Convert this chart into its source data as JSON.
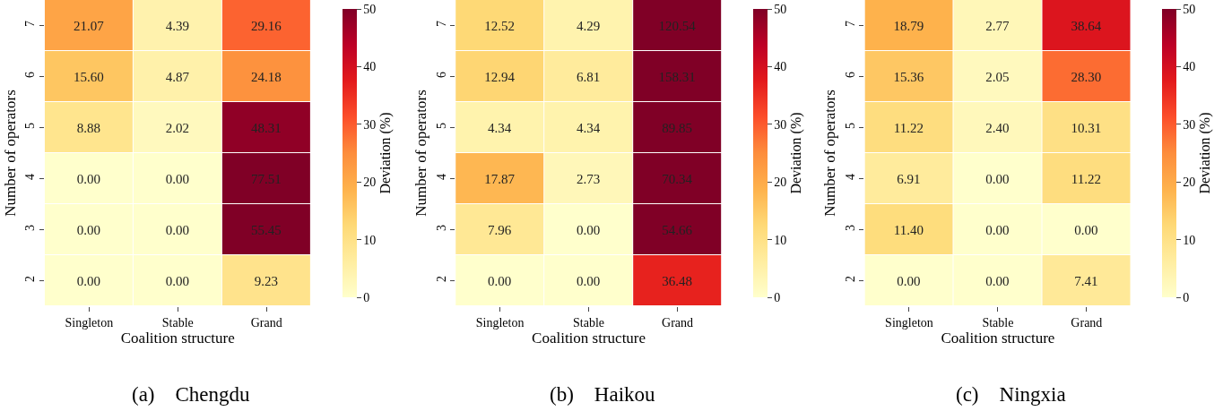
{
  "chart_data": [
    {
      "type": "heatmap",
      "title": "(a)    Chengdu",
      "xlabel": "Coalition structure",
      "ylabel": "Number of operators",
      "clabel": "Deviation (%)",
      "categories": [
        "Singleton",
        "Stable",
        "Grand"
      ],
      "y_categories": [
        "7",
        "6",
        "5",
        "4",
        "3",
        "2"
      ],
      "cells": [
        [
          21.07,
          4.39,
          29.16
        ],
        [
          15.6,
          4.87,
          24.18
        ],
        [
          8.88,
          2.02,
          48.31
        ],
        [
          0,
          0,
          77.51
        ],
        [
          0,
          0,
          55.45
        ],
        [
          0,
          0,
          9.23
        ]
      ],
      "cell_labels": [
        [
          "21.07",
          "4.39",
          "29.16"
        ],
        [
          "15.60",
          "4.87",
          "24.18"
        ],
        [
          "8.88",
          "2.02",
          "48.31"
        ],
        [
          "0.00",
          "0.00",
          "77.51"
        ],
        [
          "0.00",
          "0.00",
          "55.45"
        ],
        [
          "0.00",
          "0.00",
          "9.23"
        ]
      ],
      "clim": [
        0,
        50
      ],
      "cticks": [
        0,
        10,
        20,
        30,
        40,
        50
      ]
    },
    {
      "type": "heatmap",
      "title": "(b)    Haikou",
      "xlabel": "Coalition structure",
      "ylabel": "Number of operators",
      "clabel": "Deviation (%)",
      "categories": [
        "Singleton",
        "Stable",
        "Grand"
      ],
      "y_categories": [
        "7",
        "6",
        "5",
        "4",
        "3",
        "2"
      ],
      "cells": [
        [
          12.52,
          4.29,
          120.54
        ],
        [
          12.94,
          6.81,
          158.31
        ],
        [
          4.34,
          4.34,
          89.85
        ],
        [
          17.87,
          2.73,
          70.34
        ],
        [
          7.96,
          0,
          54.66
        ],
        [
          0,
          0,
          36.48
        ]
      ],
      "cell_labels": [
        [
          "12.52",
          "4.29",
          "120.54"
        ],
        [
          "12.94",
          "6.81",
          "158.31"
        ],
        [
          "4.34",
          "4.34",
          "89.85"
        ],
        [
          "17.87",
          "2.73",
          "70.34"
        ],
        [
          "7.96",
          "0.00",
          "54.66"
        ],
        [
          "0.00",
          "0.00",
          "36.48"
        ]
      ],
      "clim": [
        0,
        50
      ],
      "cticks": [
        0,
        10,
        20,
        30,
        40,
        50
      ]
    },
    {
      "type": "heatmap",
      "title": "(c)    Ningxia",
      "xlabel": "Coalition structure",
      "ylabel": "Number of operators",
      "clabel": "Deviation (%)",
      "categories": [
        "Singleton",
        "Stable",
        "Grand"
      ],
      "y_categories": [
        "7",
        "6",
        "5",
        "4",
        "3",
        "2"
      ],
      "cells": [
        [
          18.79,
          2.77,
          38.64
        ],
        [
          15.36,
          2.05,
          28.3
        ],
        [
          11.22,
          2.4,
          10.31
        ],
        [
          6.91,
          0,
          11.22
        ],
        [
          11.4,
          0,
          0
        ],
        [
          0,
          0,
          7.41
        ]
      ],
      "cell_labels": [
        [
          "18.79",
          "2.77",
          "38.64"
        ],
        [
          "15.36",
          "2.05",
          "28.30"
        ],
        [
          "11.22",
          "2.40",
          "10.31"
        ],
        [
          "6.91",
          "0.00",
          "11.22"
        ],
        [
          "11.40",
          "0.00",
          "0.00"
        ],
        [
          "0.00",
          "0.00",
          "7.41"
        ]
      ],
      "clim": [
        0,
        50
      ],
      "cticks": [
        0,
        10,
        20,
        30,
        40,
        50
      ]
    }
  ]
}
